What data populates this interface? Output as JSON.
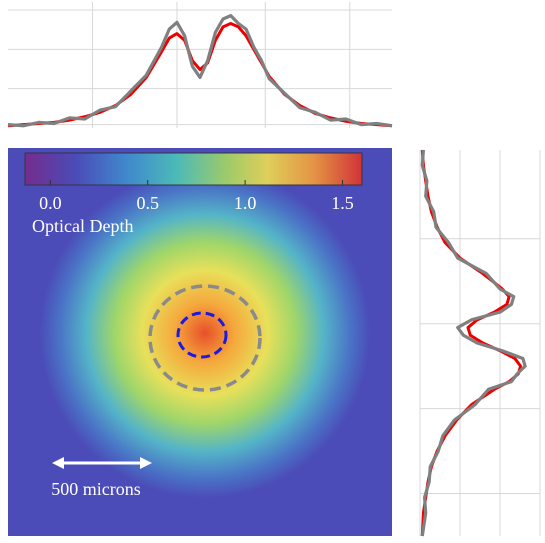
{
  "chart_data": [
    {
      "type": "line",
      "orientation": "horizontal",
      "x": [
        0,
        4,
        8,
        12,
        16,
        20,
        24,
        28,
        32,
        36,
        40,
        42,
        44,
        46,
        48,
        50,
        52,
        54,
        56,
        58,
        60,
        62,
        64,
        66,
        68,
        72,
        76,
        80,
        84,
        88,
        92,
        96,
        100
      ],
      "xlim": [
        0,
        100
      ],
      "xticks": [
        22,
        44,
        67,
        89
      ],
      "ylim": [
        0,
        1.05
      ],
      "yticks": [
        0.03,
        0.35,
        0.7,
        1.05
      ],
      "grid": true,
      "series": [
        {
          "color": "#ee0000",
          "values": [
            0.02,
            0.03,
            0.04,
            0.05,
            0.07,
            0.1,
            0.14,
            0.2,
            0.3,
            0.45,
            0.68,
            0.8,
            0.84,
            0.78,
            0.6,
            0.52,
            0.58,
            0.78,
            0.9,
            0.93,
            0.9,
            0.82,
            0.7,
            0.58,
            0.46,
            0.3,
            0.2,
            0.13,
            0.09,
            0.06,
            0.04,
            0.03,
            0.02
          ]
        },
        {
          "color": "#808080",
          "values": [
            0.03,
            0.02,
            0.05,
            0.04,
            0.09,
            0.08,
            0.16,
            0.19,
            0.33,
            0.47,
            0.72,
            0.88,
            0.94,
            0.82,
            0.55,
            0.45,
            0.6,
            0.85,
            0.97,
            1.0,
            0.93,
            0.88,
            0.72,
            0.6,
            0.44,
            0.31,
            0.18,
            0.14,
            0.07,
            0.08,
            0.03,
            0.04,
            0.02
          ]
        }
      ]
    },
    {
      "type": "line",
      "orientation": "vertical",
      "x": [
        0,
        4,
        8,
        12,
        16,
        20,
        24,
        28,
        32,
        36,
        38,
        40,
        42,
        44,
        46,
        48,
        50,
        52,
        54,
        56,
        58,
        60,
        62,
        66,
        70,
        74,
        78,
        82,
        86,
        90,
        94,
        100
      ],
      "xlim": [
        0,
        100
      ],
      "xticks": [
        23,
        45,
        67,
        89
      ],
      "ylim": [
        0,
        1.05
      ],
      "yticks": [
        0,
        0.35,
        0.7,
        1.05
      ],
      "grid": true,
      "series": [
        {
          "color": "#ee0000",
          "values": [
            0.02,
            0.03,
            0.05,
            0.07,
            0.1,
            0.15,
            0.22,
            0.35,
            0.55,
            0.72,
            0.78,
            0.76,
            0.65,
            0.5,
            0.42,
            0.44,
            0.55,
            0.7,
            0.83,
            0.88,
            0.86,
            0.78,
            0.65,
            0.45,
            0.32,
            0.22,
            0.15,
            0.1,
            0.07,
            0.05,
            0.03,
            0.02
          ]
        },
        {
          "color": "#808080",
          "values": [
            0.03,
            0.02,
            0.06,
            0.05,
            0.12,
            0.14,
            0.25,
            0.33,
            0.58,
            0.7,
            0.82,
            0.8,
            0.7,
            0.45,
            0.33,
            0.38,
            0.5,
            0.72,
            0.9,
            0.92,
            0.85,
            0.8,
            0.6,
            0.48,
            0.3,
            0.2,
            0.16,
            0.09,
            0.08,
            0.04,
            0.05,
            0.02
          ]
        }
      ]
    },
    {
      "type": "image",
      "colorbar_label": "Optical Depth",
      "clim": [
        -0.13,
        1.6
      ],
      "cticks": [
        {
          "value": 0,
          "label": "0.0"
        },
        {
          "value": 0.5,
          "label": "0.5"
        },
        {
          "value": 1,
          "label": "1.0"
        },
        {
          "value": 1.5,
          "label": "1.5"
        }
      ],
      "annotation": "500 microns"
    }
  ]
}
